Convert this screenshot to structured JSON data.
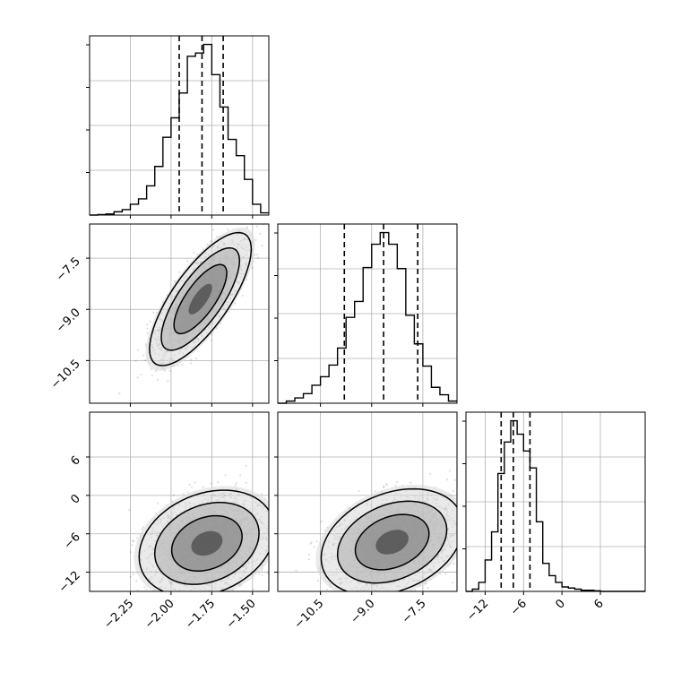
{
  "chart_data": {
    "type": "corner",
    "parameters": [
      {
        "range": [
          -2.5,
          -1.4
        ],
        "ticks": [
          -2.25,
          -2.0,
          -1.75,
          -1.5
        ],
        "tick_labels": [
          "−2.25",
          "−2.00",
          "−1.75",
          "−1.50"
        ]
      },
      {
        "range": [
          -11.75,
          -6.5
        ],
        "ticks": [
          -10.5,
          -9.0,
          -7.5
        ],
        "tick_labels": [
          "−10.5",
          "−9.0",
          "−7.5"
        ]
      },
      {
        "range": [
          -15,
          13
        ],
        "ticks": [
          -12,
          -6,
          0,
          6
        ],
        "tick_labels": [
          "−12",
          "−6",
          "0",
          "6"
        ]
      }
    ],
    "histograms": [
      {
        "quantiles": [
          -1.95,
          -1.81,
          -1.68
        ],
        "bin_edges": [
          -2.5,
          -2.45,
          -2.4,
          -2.35,
          -2.3,
          -2.25,
          -2.2,
          -2.15,
          -2.1,
          -2.05,
          -2.0,
          -1.95,
          -1.9,
          -1.85,
          -1.8,
          -1.75,
          -1.7,
          -1.65,
          -1.6,
          -1.55,
          -1.5,
          -1.45,
          -1.4
        ],
        "counts": [
          0,
          0.5,
          1,
          3,
          5,
          10,
          15,
          27,
          45,
          72,
          90,
          113,
          147,
          150,
          158,
          130,
          100,
          70,
          55,
          33,
          10,
          2
        ]
      },
      {
        "quantiles": [
          -9.8,
          -8.65,
          -7.65
        ],
        "bin_edges": [
          -11.75,
          -11.5,
          -11.25,
          -11.0,
          -10.75,
          -10.5,
          -10.25,
          -10.0,
          -9.75,
          -9.5,
          -9.25,
          -9.0,
          -8.75,
          -8.5,
          -8.25,
          -8.0,
          -7.75,
          -7.5,
          -7.25,
          -7.0,
          -6.75,
          -6.5
        ],
        "counts": [
          0,
          2,
          5,
          9,
          17,
          25,
          36,
          52,
          81,
          96,
          128,
          150,
          161,
          150,
          127,
          83,
          56,
          35,
          15,
          8,
          2
        ]
      },
      {
        "quantiles": [
          -9.5,
          -7.6,
          -5.0
        ],
        "bin_edges": [
          -15,
          -14,
          -13,
          -12,
          -11,
          -10,
          -9,
          -8,
          -7,
          -6,
          -5,
          -4,
          -3,
          -2,
          -1,
          0,
          1,
          2,
          3,
          4,
          5,
          6,
          7,
          8,
          9,
          10,
          11,
          12,
          13
        ],
        "counts": [
          0,
          2,
          8,
          28,
          53,
          105,
          133,
          152,
          140,
          125,
          110,
          62,
          25,
          14,
          8,
          4,
          3,
          2,
          1,
          1,
          0.5,
          0,
          0,
          0,
          0,
          0,
          0,
          0
        ]
      }
    ],
    "pairs": [
      {
        "x_param": 0,
        "y_param": 1,
        "mean": [
          -1.82,
          -8.7
        ],
        "sd": [
          0.12,
          0.75
        ],
        "correlation": 0.75
      },
      {
        "x_param": 0,
        "y_param": 2,
        "mean": [
          -1.78,
          -7.5
        ],
        "sd": [
          0.16,
          3.2
        ],
        "correlation": 0.25
      },
      {
        "x_param": 1,
        "y_param": 2,
        "mean": [
          -8.4,
          -7.3
        ],
        "sd": [
          0.8,
          3.2
        ],
        "correlation": 0.3
      }
    ],
    "grid": true
  }
}
